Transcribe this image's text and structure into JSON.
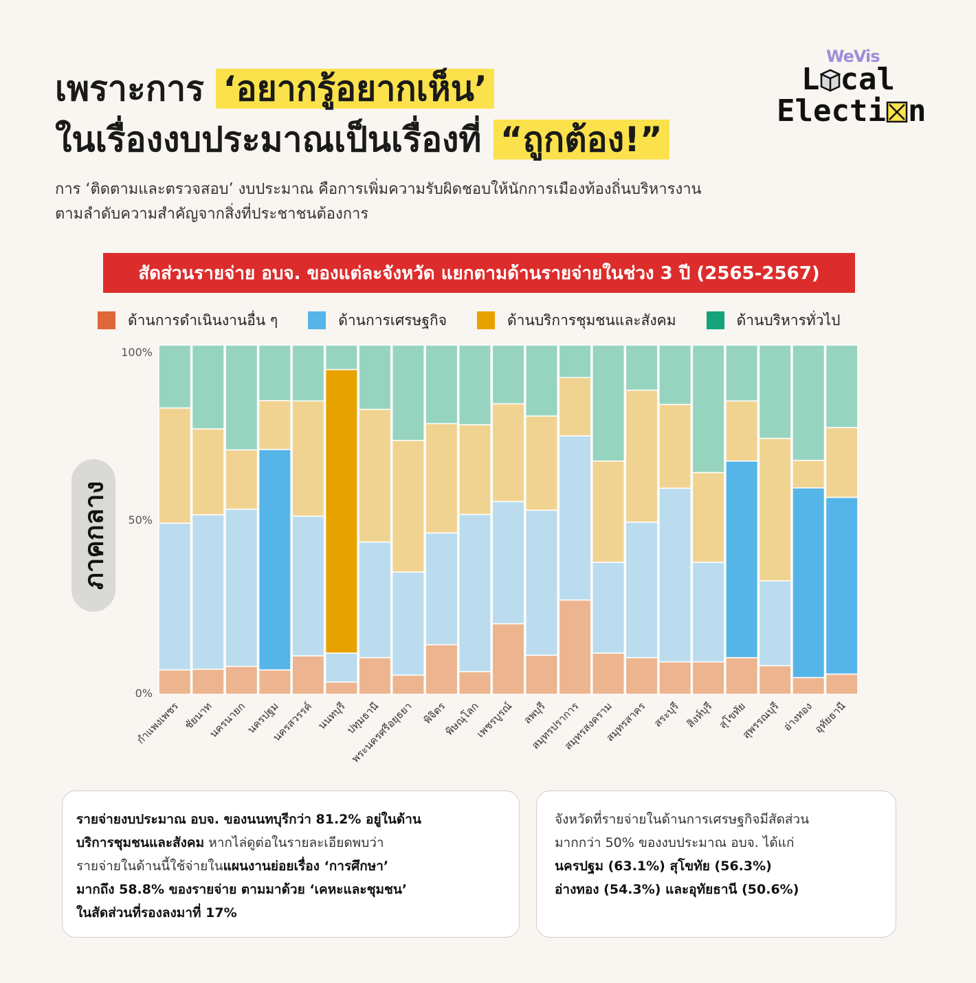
{
  "header": {
    "title_line1_pre": "เพราะการ",
    "title_line1_hl": "‘อยากรู้อยากเห็น’",
    "title_line2_pre": "ในเรื่องงบประมาณเป็นเรื่องที่",
    "title_line2_hl": "“ถูกต้อง!”",
    "subtitle_line1": "การ ‘ติดตามและตรวจสอบ’ งบประมาณ คือการเพิ่มความรับผิดชอบให้นักการเมืองท้องถิ่นบริหารงาน",
    "subtitle_line2": "ตามลำดับความสำคัญจากสิ่งที่ประชาชนต้องการ"
  },
  "logo": {
    "wevis": "WeVis",
    "line1_a": "L",
    "line1_b": "cal",
    "line2_a": "Electi",
    "line2_b": "n"
  },
  "region_label": "ภาคกลาง",
  "colors": {
    "other": "#e06738",
    "economic": "#55b5e8",
    "community": "#e8a200",
    "admin": "#14a37a",
    "other_light": "#ecb58f",
    "economic_light": "#badcee",
    "community_light": "#f1d391",
    "admin_light": "#96d4bf",
    "banner": "#dd2c2c",
    "highlight": "#fbe14b"
  },
  "chart_data": {
    "type": "bar",
    "stacked": true,
    "normalized": true,
    "title": "สัดส่วนรายจ่าย อบจ. ของแต่ละจังหวัด แยกตามด้านรายจ่ายในช่วง 3 ปี (2565-2567)",
    "y_ticks": [
      "0%",
      "50%",
      "100%"
    ],
    "ylim": [
      0,
      100
    ],
    "legend_position": "top",
    "categories": [
      "กำแพงเพชร",
      "ชัยนาท",
      "นครนายก",
      "นครปฐม",
      "นครสวรรค์",
      "นนทบุรี",
      "ปทุมธานี",
      "พระนครศรีอยุธยา",
      "พิจิตร",
      "พิษณุโลก",
      "เพชรบูรณ์",
      "ลพบุรี",
      "สมุทรปราการ",
      "สมุทรสงคราม",
      "สมุทรสาคร",
      "สระบุรี",
      "สิงห์บุรี",
      "สุโขทัย",
      "สุพรรณบุรี",
      "อ่างทอง",
      "อุทัยธานี"
    ],
    "highlighted": [
      [
        false,
        false,
        false,
        false
      ],
      [
        false,
        false,
        false,
        false
      ],
      [
        false,
        false,
        false,
        false
      ],
      [
        false,
        true,
        false,
        false
      ],
      [
        false,
        false,
        false,
        false
      ],
      [
        false,
        false,
        true,
        false
      ],
      [
        false,
        false,
        false,
        false
      ],
      [
        false,
        false,
        false,
        false
      ],
      [
        false,
        false,
        false,
        false
      ],
      [
        false,
        false,
        false,
        false
      ],
      [
        false,
        false,
        false,
        false
      ],
      [
        false,
        false,
        false,
        false
      ],
      [
        false,
        false,
        false,
        false
      ],
      [
        false,
        false,
        false,
        false
      ],
      [
        false,
        false,
        false,
        false
      ],
      [
        false,
        false,
        false,
        false
      ],
      [
        false,
        false,
        false,
        false
      ],
      [
        false,
        true,
        false,
        false
      ],
      [
        false,
        false,
        false,
        false
      ],
      [
        false,
        true,
        false,
        false
      ],
      [
        false,
        true,
        false,
        false
      ]
    ],
    "series": [
      {
        "name": "ด้านการดำเนินงานอื่น ๆ",
        "key": "other",
        "values": [
          7.0,
          7.2,
          8.0,
          7.0,
          11.0,
          3.5,
          10.5,
          5.5,
          14.2,
          6.5,
          20.2,
          11.2,
          27.0,
          11.8,
          10.5,
          9.3,
          9.3,
          10.5,
          8.2,
          4.8,
          5.8
        ]
      },
      {
        "name": "ด้านการเศรษฐกิจ",
        "key": "economic",
        "values": [
          42.0,
          44.2,
          45.0,
          63.1,
          40.0,
          8.3,
          33.1,
          29.5,
          32.0,
          45.0,
          35.0,
          41.5,
          47.0,
          26.0,
          38.8,
          49.7,
          28.5,
          56.3,
          24.3,
          54.3,
          50.6
        ]
      },
      {
        "name": "ด้านบริการชุมชนและสังคม",
        "key": "community",
        "values": [
          33.0,
          24.6,
          17.0,
          14.0,
          33.0,
          81.2,
          38.0,
          37.7,
          31.3,
          25.7,
          28.0,
          27.0,
          16.7,
          29.0,
          37.8,
          24.0,
          25.7,
          17.2,
          40.8,
          7.9,
          20.0
        ]
      },
      {
        "name": "ด้านบริหารทั่วไป",
        "key": "admin",
        "values": [
          18.0,
          24.0,
          30.0,
          15.9,
          16.0,
          7.0,
          18.4,
          27.3,
          22.5,
          22.8,
          16.8,
          20.3,
          9.3,
          33.2,
          12.9,
          17.0,
          36.5,
          16.0,
          26.7,
          33.0,
          23.6
        ]
      }
    ]
  },
  "notes": {
    "note1": {
      "l1_b": "รายจ่ายงบประมาณ อบจ. ของนนทบุรีกว่า 81.2% อยู่ในด้าน",
      "l2_b": "บริการชุมชนและสังคม",
      "l2_t": " หากไล่ดูต่อในรายละเอียดพบว่า",
      "l3_t": "รายจ่ายในด้านนี้ใช้จ่ายใน",
      "l3_b": "แผนงานย่อยเรื่อง ‘การศึกษา’",
      "l4_b": "มากถึง 58.8% ของรายจ่าย ตามมาด้วย ‘เคหะและชุมชน’",
      "l5_b": "ในสัดส่วนที่รองลงมาที่ 17%"
    },
    "note2": {
      "l1_t": "จังหวัดที่รายจ่ายในด้านการเศรษฐกิจมีสัดส่วน",
      "l2_t": "มากกว่า 50% ของงบประมาณ อบจ. ได้แก่",
      "l3_b": "นครปฐม (63.1%) สุโขทัย (56.3%)",
      "l4_b": "อ่างทอง (54.3%) และอุทัยธานี (50.6%)"
    }
  }
}
